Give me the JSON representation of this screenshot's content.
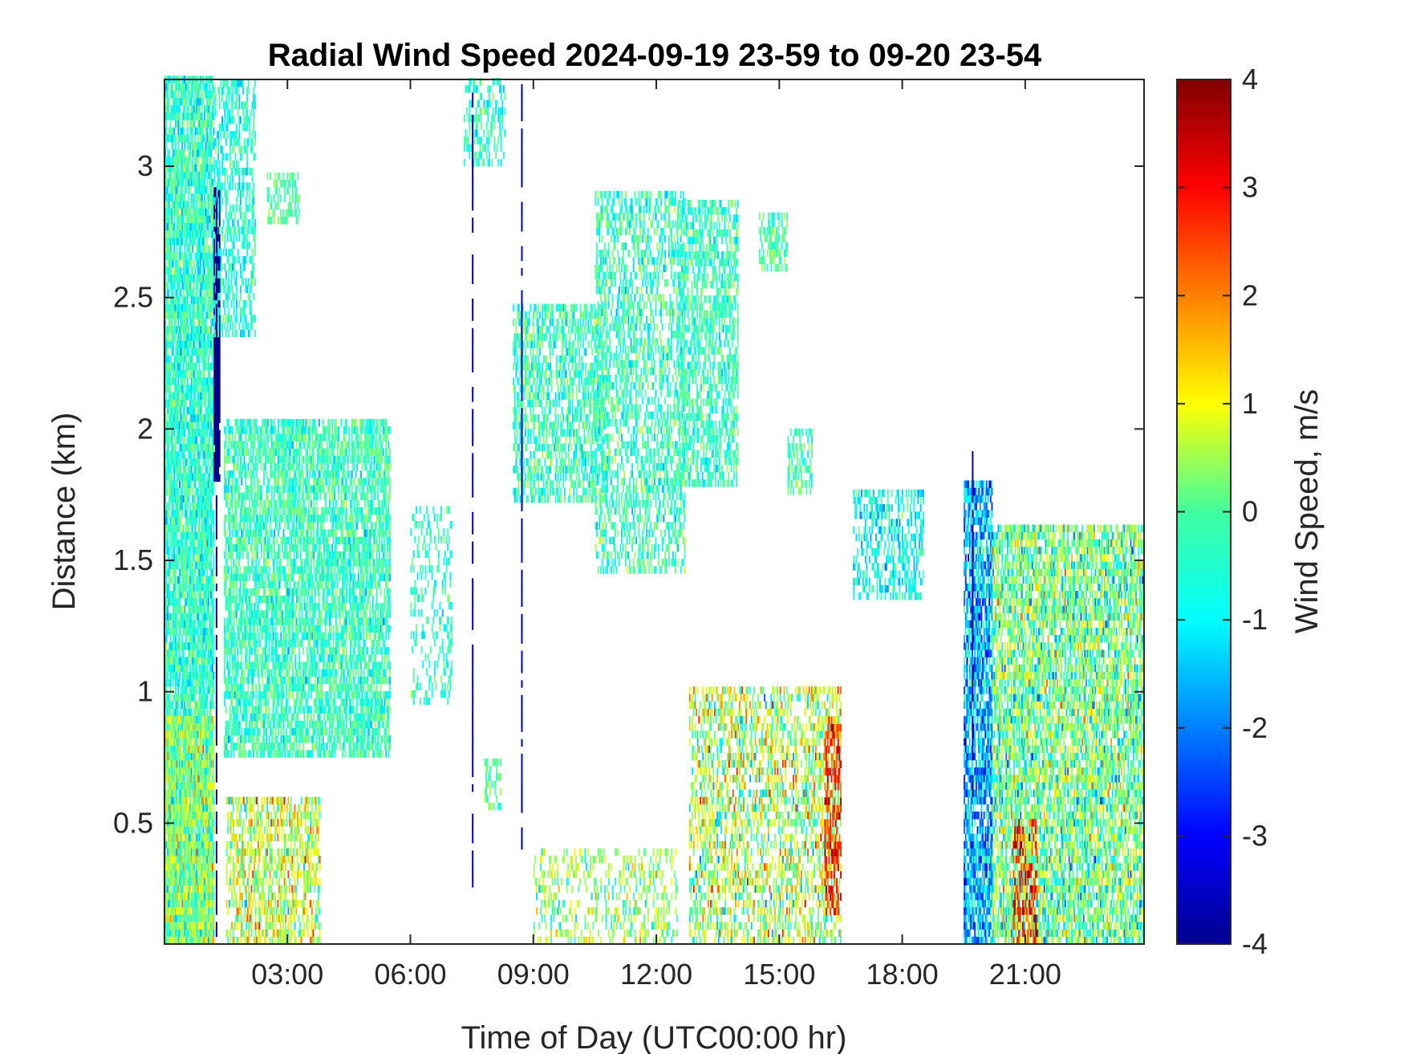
{
  "chart_data": {
    "type": "heatmap",
    "title": "Radial Wind Speed 2024-09-19 23-59 to 09-20 23-54",
    "xlabel": "Time of Day (UTC00:00 hr)",
    "ylabel": "Distance (km)",
    "x_range_hours": [
      0,
      23.9
    ],
    "y_range_km": [
      0.04,
      3.33
    ],
    "x_ticks": [
      {
        "hour": 3,
        "label": "03:00"
      },
      {
        "hour": 6,
        "label": "06:00"
      },
      {
        "hour": 9,
        "label": "09:00"
      },
      {
        "hour": 12,
        "label": "12:00"
      },
      {
        "hour": 15,
        "label": "15:00"
      },
      {
        "hour": 18,
        "label": "18:00"
      },
      {
        "hour": 21,
        "label": "21:00"
      }
    ],
    "y_ticks": [
      {
        "km": 0.5,
        "label": "0.5"
      },
      {
        "km": 1,
        "label": "1"
      },
      {
        "km": 1.5,
        "label": "1.5"
      },
      {
        "km": 2,
        "label": "2"
      },
      {
        "km": 2.5,
        "label": "2.5"
      },
      {
        "km": 3,
        "label": "3"
      }
    ],
    "colorbar": {
      "label": "Wind Speed, m/s",
      "range": [
        -4,
        4
      ],
      "colormap": "jet",
      "ticks": [
        {
          "value": 4,
          "label": "4"
        },
        {
          "value": 3,
          "label": "3"
        },
        {
          "value": 2,
          "label": "2"
        },
        {
          "value": 1,
          "label": "1"
        },
        {
          "value": 0,
          "label": "0"
        },
        {
          "value": -1,
          "label": "-1"
        },
        {
          "value": -2,
          "label": "-2"
        },
        {
          "value": -3,
          "label": "-3"
        },
        {
          "value": -4,
          "label": "-4"
        }
      ]
    },
    "regions": [
      {
        "t": [
          0.0,
          1.2
        ],
        "d": [
          0.04,
          3.33
        ],
        "mean": -0.6,
        "spread": 0.5,
        "density": 0.85
      },
      {
        "t": [
          0.0,
          1.2
        ],
        "d": [
          0.04,
          0.9
        ],
        "mean": 0.2,
        "spread": 0.8,
        "density": 0.8
      },
      {
        "t": [
          1.2,
          1.35
        ],
        "d": [
          1.8,
          2.92
        ],
        "mean": -4.0,
        "spread": 0.1,
        "density": 0.95
      },
      {
        "t": [
          1.2,
          2.2
        ],
        "d": [
          2.35,
          3.33
        ],
        "mean": -0.7,
        "spread": 0.4,
        "density": 0.45
      },
      {
        "t": [
          1.45,
          5.5
        ],
        "d": [
          0.75,
          2.02
        ],
        "mean": -0.5,
        "spread": 0.45,
        "density": 0.7
      },
      {
        "t": [
          1.5,
          3.8
        ],
        "d": [
          0.04,
          0.6
        ],
        "mean": 0.6,
        "spread": 0.9,
        "density": 0.55
      },
      {
        "t": [
          2.5,
          3.3
        ],
        "d": [
          2.78,
          2.95
        ],
        "mean": -0.3,
        "spread": 0.3,
        "density": 0.45
      },
      {
        "t": [
          6.0,
          7.0
        ],
        "d": [
          0.95,
          1.7
        ],
        "mean": -0.6,
        "spread": 0.4,
        "density": 0.25
      },
      {
        "t": [
          7.3,
          8.3
        ],
        "d": [
          3.0,
          3.33
        ],
        "mean": -0.6,
        "spread": 0.4,
        "density": 0.35
      },
      {
        "t": [
          8.5,
          10.8
        ],
        "d": [
          1.72,
          2.45
        ],
        "mean": -0.5,
        "spread": 0.5,
        "density": 0.55
      },
      {
        "t": [
          10.5,
          12.7
        ],
        "d": [
          1.45,
          2.88
        ],
        "mean": -0.5,
        "spread": 0.5,
        "density": 0.45
      },
      {
        "t": [
          12.5,
          14.0
        ],
        "d": [
          1.78,
          2.85
        ],
        "mean": -0.5,
        "spread": 0.45,
        "density": 0.55
      },
      {
        "t": [
          14.5,
          15.2
        ],
        "d": [
          2.6,
          2.82
        ],
        "mean": -0.3,
        "spread": 0.4,
        "density": 0.55
      },
      {
        "t": [
          15.2,
          15.8
        ],
        "d": [
          1.75,
          2.0
        ],
        "mean": -0.4,
        "spread": 0.4,
        "density": 0.5
      },
      {
        "t": [
          16.8,
          18.5
        ],
        "d": [
          1.35,
          1.75
        ],
        "mean": -0.9,
        "spread": 0.5,
        "density": 0.45
      },
      {
        "t": [
          7.8,
          8.2
        ],
        "d": [
          0.55,
          0.72
        ],
        "mean": -0.2,
        "spread": 0.4,
        "density": 0.5
      },
      {
        "t": [
          9.0,
          12.5
        ],
        "d": [
          0.04,
          0.4
        ],
        "mean": 0.2,
        "spread": 0.7,
        "density": 0.3
      },
      {
        "t": [
          12.8,
          16.5
        ],
        "d": [
          0.04,
          1.0
        ],
        "mean": 0.4,
        "spread": 1.0,
        "density": 0.45
      },
      {
        "t": [
          16.1,
          16.5
        ],
        "d": [
          0.15,
          0.9
        ],
        "mean": 2.6,
        "spread": 0.7,
        "density": 0.5
      },
      {
        "t": [
          19.5,
          20.2
        ],
        "d": [
          0.04,
          1.8
        ],
        "mean": -1.6,
        "spread": 0.8,
        "density": 0.75
      },
      {
        "t": [
          20.2,
          23.9
        ],
        "d": [
          0.04,
          1.62
        ],
        "mean": -0.1,
        "spread": 0.9,
        "density": 0.7
      },
      {
        "t": [
          20.7,
          21.3
        ],
        "d": [
          0.04,
          0.5
        ],
        "mean": 2.8,
        "spread": 0.8,
        "density": 0.45
      }
    ],
    "lines": [
      {
        "t": 1.25,
        "d": [
          0.04,
          2.9
        ],
        "value": -3.9
      },
      {
        "t": 7.5,
        "d": [
          0.2,
          3.3
        ],
        "value": -3.8
      },
      {
        "t": 8.7,
        "d": [
          0.4,
          3.3
        ],
        "value": -3.6
      },
      {
        "t": 19.7,
        "d": [
          0.6,
          1.9
        ],
        "value": -3.7
      }
    ]
  }
}
